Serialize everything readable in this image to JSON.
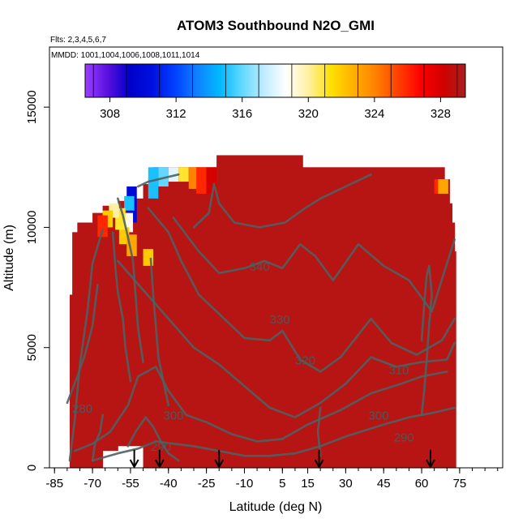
{
  "chart_data": {
    "type": "heatmap",
    "title": "ATOM3 Southbound N2O_GMI",
    "flights_label": "Flts: 2,3,4,5,6,7",
    "dates_label": "MMDD: 1001,1004,1006,1008,1011,1014",
    "xlabel": "Latitude (deg N)",
    "ylabel": "Altitude (m)",
    "xlim": [
      -87,
      92
    ],
    "ylim": [
      0,
      17500
    ],
    "x_ticks_major": [
      -85,
      -70,
      -55,
      -40,
      -25,
      -10,
      5,
      15,
      30,
      45,
      60,
      75
    ],
    "x_tick_labels": [
      "-85",
      "-70",
      "-55",
      "-40",
      "-25",
      "-10",
      "5",
      "15",
      "30",
      "45",
      "60",
      "75"
    ],
    "y_ticks": [
      0,
      5000,
      10000,
      15000
    ],
    "y_tick_labels": [
      "0",
      "5000",
      "10000",
      "15000"
    ],
    "colorbar": {
      "min": 306.5,
      "max": 329.5,
      "ticks": [
        308,
        312,
        316,
        320,
        324,
        328
      ],
      "tick_labels": [
        "308",
        "312",
        "316",
        "320",
        "324",
        "328"
      ],
      "colors": [
        "#9a40ff",
        "#5a10e0",
        "#0000c8",
        "#0010e0",
        "#0040ff",
        "#1080ff",
        "#00b8ff",
        "#60d8ff",
        "#c0ecff",
        "#ffffff",
        "#fff0a0",
        "#ffe000",
        "#ffb000",
        "#ff8000",
        "#ff4000",
        "#ff0000",
        "#d00000",
        "#a82020"
      ]
    },
    "background_value": 329,
    "field_cells": [
      {
        "lat": -54.5,
        "alt0": 10200,
        "alt1": 11700,
        "value": 310
      },
      {
        "lat": -55.5,
        "alt0": 10700,
        "alt1": 11300,
        "value": 315
      },
      {
        "lat": -56,
        "alt0": 9800,
        "alt1": 10600,
        "value": 319
      },
      {
        "lat": -57.5,
        "alt0": 9300,
        "alt1": 10000,
        "value": 322
      },
      {
        "lat": -59,
        "alt0": 9900,
        "alt1": 10800,
        "value": 321
      },
      {
        "lat": -61.5,
        "alt0": 10400,
        "alt1": 11000,
        "value": 320
      },
      {
        "lat": -64,
        "alt0": 10000,
        "alt1": 10700,
        "value": 322
      },
      {
        "lat": -66,
        "alt0": 9600,
        "alt1": 10500,
        "value": 326
      },
      {
        "lat": -54.5,
        "alt0": 8800,
        "alt1": 9700,
        "value": 323
      },
      {
        "lat": -48,
        "alt0": 8400,
        "alt1": 9100,
        "value": 322
      },
      {
        "lat": -46,
        "alt0": 11200,
        "alt1": 12500,
        "value": 315
      },
      {
        "lat": -42,
        "alt0": 11700,
        "alt1": 12500,
        "value": 316
      },
      {
        "lat": -38,
        "alt0": 11900,
        "alt1": 12500,
        "value": 318
      },
      {
        "lat": -34,
        "alt0": 11900,
        "alt1": 12500,
        "value": 321
      },
      {
        "lat": -30,
        "alt0": 11600,
        "alt1": 12500,
        "value": 324
      },
      {
        "lat": -27,
        "alt0": 11400,
        "alt1": 12500,
        "value": 326
      },
      {
        "lat": -23,
        "alt0": 11400,
        "alt1": 12500,
        "value": 328
      },
      {
        "lat": 67,
        "alt0": 11400,
        "alt1": 12000,
        "value": 326
      },
      {
        "lat": 68.5,
        "alt0": 11400,
        "alt1": 12000,
        "value": 323
      }
    ],
    "contour_labels": [
      {
        "text": "340",
        "lat": -4,
        "alt": 8200
      },
      {
        "text": "330",
        "lat": 4,
        "alt": 6000
      },
      {
        "text": "320",
        "lat": 14,
        "alt": 4300
      },
      {
        "text": "310",
        "lat": 51,
        "alt": 3900
      },
      {
        "text": "300",
        "lat": -38,
        "alt": 2000
      },
      {
        "text": "300",
        "lat": 43,
        "alt": 2000
      },
      {
        "text": "290",
        "lat": -43,
        "alt": 700
      },
      {
        "text": "290",
        "lat": 53,
        "alt": 1100
      },
      {
        "text": "280",
        "lat": -74,
        "alt": 2300
      }
    ],
    "arrow_latitudes": [
      -53.5,
      -43.5,
      -20,
      19.5,
      63.5
    ]
  }
}
